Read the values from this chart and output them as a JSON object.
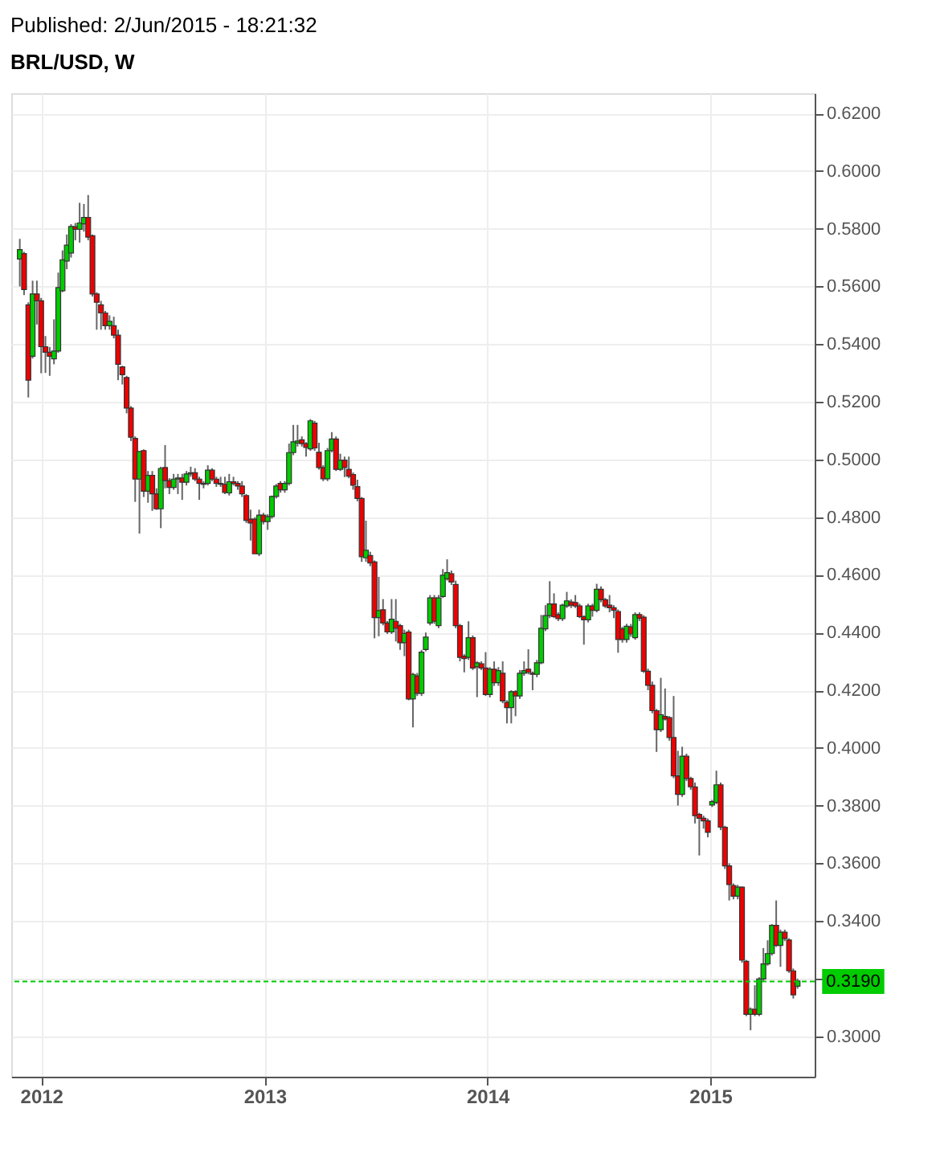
{
  "chart_data": {
    "type": "candlestick",
    "title": "BRL/USD, W",
    "subtitle": "Published: 2/Jun/2015 - 18:21:32",
    "colors": [
      "#00cc00",
      "#ee0000",
      "#ee0000",
      "#00cc00",
      "#ee0000",
      "#ee0000",
      "#ee0000",
      "#ee0000",
      "#00cc00",
      "#00cc00",
      "#00cc00",
      "#00cc00",
      "#00cc00",
      "#ee0000",
      "#00cc00",
      "#00cc00",
      "#ee0000",
      "#ee0000",
      "#ee0000",
      "#ee0000",
      "#ee0000",
      "#00cc00",
      "#ee0000",
      "#ee0000",
      "#ee0000",
      "#ee0000",
      "#ee0000",
      "#ee0000",
      "#00cc00",
      "#ee0000",
      "#00cc00",
      "#ee0000",
      "#ee0000",
      "#00cc00",
      "#ee0000",
      "#ee0000",
      "#00cc00",
      "#00cc00",
      "#ee0000",
      "#00cc00",
      "#00cc00",
      "#ee0000",
      "#ee0000",
      "#ee0000",
      "#00cc00",
      "#ee0000",
      "#ee0000",
      "#ee0000",
      "#ee0000",
      "#00cc00",
      "#ee0000",
      "#ee0000",
      "#ee0000",
      "#ee0000",
      "#ee0000",
      "#ee0000",
      "#00cc00",
      "#ee0000",
      "#00cc00",
      "#00cc00",
      "#00cc00",
      "#ee0000",
      "#00cc00",
      "#00cc00",
      "#00cc00",
      "#00cc00",
      "#ee0000",
      "#ee0000",
      "#00cc00",
      "#ee0000",
      "#ee0000",
      "#ee0000",
      "#00cc00",
      "#00cc00",
      "#ee0000",
      "#00cc00",
      "#ee0000",
      "#ee0000",
      "#ee0000",
      "#ee0000",
      "#ee0000",
      "#00cc00",
      "#ee0000",
      "#ee0000",
      "#00cc00",
      "#ee0000",
      "#ee0000",
      "#00cc00",
      "#ee0000",
      "#ee0000",
      "#00cc00",
      "#ee0000",
      "#00cc00",
      "#ee0000",
      "#00cc00",
      "#00cc00",
      "#00cc00",
      "#ee0000",
      "#00cc00",
      "#00cc00",
      "#00cc00",
      "#ee0000",
      "#ee0000",
      "#ee0000",
      "#ee0000",
      "#00cc00",
      "#ee0000",
      "#00cc00",
      "#ee0000",
      "#ee0000",
      "#00cc00",
      "#ee0000",
      "#00cc00",
      "#ee0000",
      "#ee0000",
      "#00cc00",
      "#ee0000",
      "#00cc00",
      "#00cc00",
      "#ee0000",
      "#ee0000",
      "#00cc00",
      "#00cc00",
      "#00cc00",
      "#00cc00",
      "#ee0000",
      "#ee0000",
      "#00cc00",
      "#00cc00",
      "#ee0000",
      "#ee0000",
      "#ee0000",
      "#ee0000",
      "#00cc00",
      "#ee0000",
      "#00cc00",
      "#ee0000",
      "#ee0000",
      "#ee0000",
      "#ee0000",
      "#ee0000",
      "#ee0000",
      "#00cc00",
      "#ee0000",
      "#00cc00",
      "#ee0000",
      "#ee0000",
      "#ee0000",
      "#ee0000",
      "#ee0000",
      "#00cc00",
      "#ee0000",
      "#ee0000",
      "#ee0000",
      "#ee0000",
      "#00cc00",
      "#ee0000",
      "#ee0000",
      "#ee0000",
      "#ee0000",
      "#ee0000",
      "#ee0000",
      "#00cc00",
      "#00cc00",
      "#ee0000",
      "#ee0000",
      "#ee0000",
      "#ee0000",
      "#00cc00",
      "#ee0000",
      "#ee0000",
      "#00cc00",
      "#ee0000",
      "#00cc00",
      "#00cc00",
      "#00cc00",
      "#00cc00",
      "#ee0000",
      "#00cc00",
      "#ee0000",
      "#ee0000",
      "#ee0000",
      "#00cc00"
    ],
    "grid": true,
    "xlim": [
      "2011-11-13",
      "2015-06-21"
    ],
    "xticks": [
      {
        "value": "2012-01-01",
        "label": "2012"
      },
      {
        "value": "2013-01-01",
        "label": "2013"
      },
      {
        "value": "2014-01-01",
        "label": "2014"
      },
      {
        "value": "2015-01-01",
        "label": "2015"
      }
    ],
    "ylim": [
      0.286,
      0.627
    ],
    "yticks": [
      {
        "value": 0.3,
        "label": "0.3000"
      },
      {
        "value": 0.32,
        "label": null
      },
      {
        "value": 0.34,
        "label": "0.3400"
      },
      {
        "value": 0.36,
        "label": "0.3600"
      },
      {
        "value": 0.38,
        "label": "0.3800"
      },
      {
        "value": 0.4,
        "label": "0.4000"
      },
      {
        "value": 0.42,
        "label": "0.4200"
      },
      {
        "value": 0.44,
        "label": "0.4400"
      },
      {
        "value": 0.46,
        "label": "0.4600"
      },
      {
        "value": 0.48,
        "label": "0.4800"
      },
      {
        "value": 0.5,
        "label": "0.5000"
      },
      {
        "value": 0.52,
        "label": "0.5200"
      },
      {
        "value": 0.54,
        "label": "0.5400"
      },
      {
        "value": 0.56,
        "label": "0.5600"
      },
      {
        "value": 0.58,
        "label": "0.5800"
      },
      {
        "value": 0.6,
        "label": "0.6000"
      },
      {
        "value": 0.62,
        "label": "0.6200"
      }
    ],
    "ref_lines": [
      {
        "axis": "y",
        "value": 0.319,
        "label": "0.3190",
        "color": "#00cc00",
        "line_style": "dashed"
      }
    ],
    "x": [
      "2011-11-27",
      "2011-12-04",
      "2011-12-11",
      "2011-12-18",
      "2011-12-25",
      "2012-01-01",
      "2012-01-08",
      "2012-01-15",
      "2012-01-22",
      "2012-01-29",
      "2012-02-05",
      "2012-02-12",
      "2012-02-19",
      "2012-02-26",
      "2012-03-04",
      "2012-03-11",
      "2012-03-18",
      "2012-03-25",
      "2012-04-01",
      "2012-04-08",
      "2012-04-15",
      "2012-04-22",
      "2012-04-29",
      "2012-05-06",
      "2012-05-13",
      "2012-05-20",
      "2012-05-27",
      "2012-06-03",
      "2012-06-10",
      "2012-06-17",
      "2012-06-24",
      "2012-07-01",
      "2012-07-08",
      "2012-07-15",
      "2012-07-22",
      "2012-07-29",
      "2012-08-05",
      "2012-08-12",
      "2012-08-19",
      "2012-08-26",
      "2012-09-02",
      "2012-09-09",
      "2012-09-16",
      "2012-09-23",
      "2012-09-30",
      "2012-10-07",
      "2012-10-14",
      "2012-10-21",
      "2012-10-28",
      "2012-11-04",
      "2012-11-11",
      "2012-11-18",
      "2012-11-25",
      "2012-12-02",
      "2012-12-09",
      "2012-12-16",
      "2012-12-23",
      "2012-12-30",
      "2013-01-06",
      "2013-01-13",
      "2013-01-20",
      "2013-01-27",
      "2013-02-03",
      "2013-02-10",
      "2013-02-17",
      "2013-02-24",
      "2013-03-03",
      "2013-03-10",
      "2013-03-17",
      "2013-03-24",
      "2013-03-31",
      "2013-04-07",
      "2013-04-14",
      "2013-04-21",
      "2013-04-28",
      "2013-05-05",
      "2013-05-12",
      "2013-05-19",
      "2013-05-26",
      "2013-06-02",
      "2013-06-09",
      "2013-06-16",
      "2013-06-23",
      "2013-06-30",
      "2013-07-07",
      "2013-07-14",
      "2013-07-21",
      "2013-07-28",
      "2013-08-04",
      "2013-08-11",
      "2013-08-18",
      "2013-08-25",
      "2013-09-01",
      "2013-09-08",
      "2013-09-15",
      "2013-09-22",
      "2013-09-29",
      "2013-10-06",
      "2013-10-13",
      "2013-10-20",
      "2013-10-27",
      "2013-11-03",
      "2013-11-10",
      "2013-11-17",
      "2013-11-24",
      "2013-12-01",
      "2013-12-08",
      "2013-12-15",
      "2013-12-22",
      "2013-12-29",
      "2014-01-05",
      "2014-01-12",
      "2014-01-19",
      "2014-01-26",
      "2014-02-02",
      "2014-02-09",
      "2014-02-16",
      "2014-02-23",
      "2014-03-02",
      "2014-03-09",
      "2014-03-16",
      "2014-03-23",
      "2014-03-30",
      "2014-04-06",
      "2014-04-13",
      "2014-04-20",
      "2014-04-27",
      "2014-05-04",
      "2014-05-11",
      "2014-05-18",
      "2014-05-25",
      "2014-06-01",
      "2014-06-08",
      "2014-06-15",
      "2014-06-22",
      "2014-06-29",
      "2014-07-06",
      "2014-07-13",
      "2014-07-20",
      "2014-07-27",
      "2014-08-03",
      "2014-08-10",
      "2014-08-17",
      "2014-08-24",
      "2014-08-31",
      "2014-09-07",
      "2014-09-14",
      "2014-09-21",
      "2014-09-28",
      "2014-10-05",
      "2014-10-12",
      "2014-10-19",
      "2014-10-26",
      "2014-11-02",
      "2014-11-09",
      "2014-11-16",
      "2014-11-23",
      "2014-11-30",
      "2014-12-07",
      "2014-12-14",
      "2014-12-21",
      "2014-12-28",
      "2015-01-04",
      "2015-01-11",
      "2015-01-18",
      "2015-01-25",
      "2015-02-01",
      "2015-02-08",
      "2015-02-15",
      "2015-02-22",
      "2015-03-01",
      "2015-03-08",
      "2015-03-15",
      "2015-03-22",
      "2015-03-29",
      "2015-04-05",
      "2015-04-12",
      "2015-04-19",
      "2015-04-26",
      "2015-05-03",
      "2015-05-10",
      "2015-05-17",
      "2015-05-24"
    ],
    "ohlc": [
      [
        0.5695,
        0.5765,
        0.56,
        0.5728
      ],
      [
        0.5714,
        0.572,
        0.557,
        0.5589
      ],
      [
        0.5536,
        0.5545,
        0.5215,
        0.5275
      ],
      [
        0.5358,
        0.562,
        0.535,
        0.5574
      ],
      [
        0.5574,
        0.562,
        0.5468,
        0.555
      ],
      [
        0.555,
        0.556,
        0.5299,
        0.5391
      ],
      [
        0.5391,
        0.5428,
        0.53,
        0.5372
      ],
      [
        0.5372,
        0.539,
        0.529,
        0.5358
      ],
      [
        0.5349,
        0.5486,
        0.533,
        0.5376
      ],
      [
        0.5376,
        0.5648,
        0.537,
        0.5596
      ],
      [
        0.5585,
        0.5725,
        0.558,
        0.5692
      ],
      [
        0.5688,
        0.578,
        0.566,
        0.5743
      ],
      [
        0.5716,
        0.5816,
        0.57,
        0.5808
      ],
      [
        0.5807,
        0.582,
        0.576,
        0.5798
      ],
      [
        0.5798,
        0.589,
        0.5752,
        0.582
      ],
      [
        0.5817,
        0.5886,
        0.579,
        0.5839
      ],
      [
        0.5839,
        0.5917,
        0.576,
        0.5771
      ],
      [
        0.5776,
        0.578,
        0.5565,
        0.5574
      ],
      [
        0.5574,
        0.558,
        0.545,
        0.5545
      ],
      [
        0.5536,
        0.555,
        0.545,
        0.5508
      ],
      [
        0.5508,
        0.5515,
        0.545,
        0.5464
      ],
      [
        0.5464,
        0.55,
        0.545,
        0.5479
      ],
      [
        0.5464,
        0.5495,
        0.542,
        0.5431
      ],
      [
        0.5431,
        0.545,
        0.5275,
        0.533
      ],
      [
        0.5321,
        0.5325,
        0.526,
        0.5294
      ],
      [
        0.5284,
        0.529,
        0.516,
        0.5178
      ],
      [
        0.5178,
        0.5185,
        0.5064,
        0.5077
      ],
      [
        0.5073,
        0.508,
        0.4853,
        0.4932
      ],
      [
        0.4932,
        0.5028,
        0.4743,
        0.5028
      ],
      [
        0.5031,
        0.5035,
        0.487,
        0.489
      ],
      [
        0.489,
        0.496,
        0.485,
        0.4945
      ],
      [
        0.4945,
        0.496,
        0.4822,
        0.4881
      ],
      [
        0.4881,
        0.49,
        0.4825,
        0.4829
      ],
      [
        0.4829,
        0.4975,
        0.4762,
        0.4969
      ],
      [
        0.4972,
        0.505,
        0.49,
        0.4927
      ],
      [
        0.4927,
        0.4935,
        0.488,
        0.4903
      ],
      [
        0.4903,
        0.495,
        0.4895,
        0.4932
      ],
      [
        0.4932,
        0.495,
        0.488,
        0.4936
      ],
      [
        0.4936,
        0.495,
        0.486,
        0.4921
      ],
      [
        0.4921,
        0.496,
        0.491,
        0.495
      ],
      [
        0.495,
        0.4975,
        0.494,
        0.4954
      ],
      [
        0.4954,
        0.497,
        0.4925,
        0.4932
      ],
      [
        0.4932,
        0.494,
        0.486,
        0.4917
      ],
      [
        0.4917,
        0.4925,
        0.49,
        0.4914
      ],
      [
        0.4917,
        0.498,
        0.491,
        0.4963
      ],
      [
        0.4963,
        0.497,
        0.4925,
        0.4932
      ],
      [
        0.4932,
        0.494,
        0.4905,
        0.4917
      ],
      [
        0.4917,
        0.494,
        0.4905,
        0.4914
      ],
      [
        0.4914,
        0.494,
        0.488,
        0.4886
      ],
      [
        0.4884,
        0.495,
        0.4875,
        0.4923
      ],
      [
        0.4923,
        0.494,
        0.491,
        0.4917
      ],
      [
        0.4917,
        0.4925,
        0.4895,
        0.4908
      ],
      [
        0.4908,
        0.4925,
        0.487,
        0.4881
      ],
      [
        0.4875,
        0.488,
        0.478,
        0.4789
      ],
      [
        0.4793,
        0.4826,
        0.4719,
        0.478
      ],
      [
        0.4793,
        0.48,
        0.4673,
        0.4673
      ],
      [
        0.4673,
        0.4826,
        0.4665,
        0.4807
      ],
      [
        0.4807,
        0.4815,
        0.4775,
        0.4785
      ],
      [
        0.4785,
        0.481,
        0.4756,
        0.4802
      ],
      [
        0.4802,
        0.4875,
        0.4795,
        0.4872
      ],
      [
        0.4872,
        0.4915,
        0.4865,
        0.4908
      ],
      [
        0.4917,
        0.4925,
        0.4885,
        0.4895
      ],
      [
        0.4895,
        0.4925,
        0.4885,
        0.4917
      ],
      [
        0.4917,
        0.5055,
        0.491,
        0.5024
      ],
      [
        0.5024,
        0.512,
        0.5015,
        0.5061
      ],
      [
        0.5057,
        0.512,
        0.5045,
        0.5064
      ],
      [
        0.5068,
        0.508,
        0.5045,
        0.5055
      ],
      [
        0.5055,
        0.506,
        0.501,
        0.5042
      ],
      [
        0.5037,
        0.514,
        0.503,
        0.5134
      ],
      [
        0.5126,
        0.5134,
        0.503,
        0.504
      ],
      [
        0.5025,
        0.5058,
        0.4965,
        0.4972
      ],
      [
        0.4972,
        0.498,
        0.4925,
        0.4933
      ],
      [
        0.4933,
        0.504,
        0.4925,
        0.5031
      ],
      [
        0.5031,
        0.5095,
        0.5025,
        0.5071
      ],
      [
        0.5071,
        0.508,
        0.496,
        0.4966
      ],
      [
        0.4966,
        0.502,
        0.496,
        0.4998
      ],
      [
        0.4998,
        0.501,
        0.4939,
        0.4972
      ],
      [
        0.4966,
        0.501,
        0.4935,
        0.4942
      ],
      [
        0.4948,
        0.4955,
        0.4895,
        0.4911
      ],
      [
        0.4906,
        0.493,
        0.4855,
        0.4865
      ],
      [
        0.4865,
        0.487,
        0.4645,
        0.4663
      ],
      [
        0.4659,
        0.4788,
        0.4645,
        0.4685
      ],
      [
        0.4667,
        0.468,
        0.463,
        0.4641
      ],
      [
        0.4645,
        0.465,
        0.438,
        0.4452
      ],
      [
        0.4452,
        0.4593,
        0.4387,
        0.4476
      ],
      [
        0.4479,
        0.4516,
        0.4425,
        0.4433
      ],
      [
        0.4433,
        0.444,
        0.4395,
        0.4402
      ],
      [
        0.4402,
        0.4516,
        0.4395,
        0.4446
      ],
      [
        0.4439,
        0.4516,
        0.4369,
        0.4415
      ],
      [
        0.4424,
        0.443,
        0.434,
        0.4365
      ],
      [
        0.4365,
        0.441,
        0.4318,
        0.4397
      ],
      [
        0.4402,
        0.441,
        0.4165,
        0.417
      ],
      [
        0.417,
        0.426,
        0.4071,
        0.4255
      ],
      [
        0.425,
        0.426,
        0.418,
        0.4189
      ],
      [
        0.4189,
        0.434,
        0.418,
        0.4332
      ],
      [
        0.4341,
        0.44,
        0.4335,
        0.4384
      ],
      [
        0.4433,
        0.453,
        0.4425,
        0.452
      ],
      [
        0.452,
        0.453,
        0.443,
        0.4439
      ],
      [
        0.4424,
        0.453,
        0.4415,
        0.452
      ],
      [
        0.4525,
        0.462,
        0.452,
        0.4599
      ],
      [
        0.4586,
        0.4654,
        0.458,
        0.4608
      ],
      [
        0.4604,
        0.4615,
        0.4565,
        0.4575
      ],
      [
        0.4567,
        0.458,
        0.4415,
        0.4424
      ],
      [
        0.4424,
        0.443,
        0.43,
        0.4314
      ],
      [
        0.4318,
        0.4325,
        0.4262,
        0.431
      ],
      [
        0.4314,
        0.4439,
        0.4305,
        0.4382
      ],
      [
        0.4382,
        0.439,
        0.427,
        0.4277
      ],
      [
        0.4281,
        0.43,
        0.4176,
        0.4295
      ],
      [
        0.4292,
        0.43,
        0.427,
        0.4277
      ],
      [
        0.4277,
        0.4332,
        0.418,
        0.4185
      ],
      [
        0.4185,
        0.428,
        0.4175,
        0.4273
      ],
      [
        0.4273,
        0.43,
        0.4215,
        0.4226
      ],
      [
        0.4226,
        0.428,
        0.4215,
        0.4268
      ],
      [
        0.4259,
        0.43,
        0.4155,
        0.4163
      ],
      [
        0.4158,
        0.4165,
        0.4085,
        0.414
      ],
      [
        0.414,
        0.42,
        0.4085,
        0.4195
      ],
      [
        0.4195,
        0.42,
        0.411,
        0.418
      ],
      [
        0.418,
        0.427,
        0.417,
        0.4259
      ],
      [
        0.4259,
        0.43,
        0.425,
        0.4268
      ],
      [
        0.4273,
        0.4342,
        0.4255,
        0.4262
      ],
      [
        0.4259,
        0.4265,
        0.42,
        0.4255
      ],
      [
        0.4255,
        0.4305,
        0.4245,
        0.4295
      ],
      [
        0.4295,
        0.4461,
        0.429,
        0.4415
      ],
      [
        0.4413,
        0.4495,
        0.4405,
        0.4459
      ],
      [
        0.4459,
        0.4578,
        0.445,
        0.4499
      ],
      [
        0.4499,
        0.4536,
        0.445,
        0.4455
      ],
      [
        0.4462,
        0.447,
        0.444,
        0.4448
      ],
      [
        0.4448,
        0.45,
        0.444,
        0.4495
      ],
      [
        0.4492,
        0.4541,
        0.4485,
        0.451
      ],
      [
        0.4506,
        0.4515,
        0.4485,
        0.4495
      ],
      [
        0.4504,
        0.453,
        0.4485,
        0.4492
      ],
      [
        0.4492,
        0.45,
        0.445,
        0.4455
      ],
      [
        0.4455,
        0.446,
        0.4358,
        0.4444
      ],
      [
        0.4444,
        0.45,
        0.4435,
        0.4492
      ],
      [
        0.4492,
        0.45,
        0.4455,
        0.4477
      ],
      [
        0.4477,
        0.4569,
        0.447,
        0.455
      ],
      [
        0.455,
        0.456,
        0.4505,
        0.4514
      ],
      [
        0.4514,
        0.452,
        0.4485,
        0.4492
      ],
      [
        0.4495,
        0.453,
        0.447,
        0.4486
      ],
      [
        0.4486,
        0.4495,
        0.445,
        0.4477
      ],
      [
        0.4473,
        0.448,
        0.433,
        0.4376
      ],
      [
        0.4413,
        0.442,
        0.4365,
        0.4376
      ],
      [
        0.4376,
        0.443,
        0.4365,
        0.4422
      ],
      [
        0.442,
        0.443,
        0.4385,
        0.4395
      ],
      [
        0.4382,
        0.447,
        0.4375,
        0.4462
      ],
      [
        0.4462,
        0.447,
        0.444,
        0.445
      ],
      [
        0.4453,
        0.446,
        0.426,
        0.4266
      ],
      [
        0.4266,
        0.4275,
        0.42,
        0.4217
      ],
      [
        0.4217,
        0.423,
        0.412,
        0.4129
      ],
      [
        0.4129,
        0.4135,
        0.3986,
        0.4063
      ],
      [
        0.4063,
        0.4243,
        0.4055,
        0.4115
      ],
      [
        0.4109,
        0.4206,
        0.4095,
        0.41
      ],
      [
        0.4105,
        0.411,
        0.4025,
        0.4036
      ],
      [
        0.4036,
        0.418,
        0.3895,
        0.3903
      ],
      [
        0.3903,
        0.399,
        0.38,
        0.3839
      ],
      [
        0.3839,
        0.4004,
        0.383,
        0.3971
      ],
      [
        0.3971,
        0.398,
        0.3885,
        0.3894
      ],
      [
        0.3894,
        0.39,
        0.3855,
        0.3865
      ],
      [
        0.3865,
        0.388,
        0.3738,
        0.3765
      ],
      [
        0.3769,
        0.3775,
        0.3627,
        0.3756
      ],
      [
        0.3756,
        0.3765,
        0.372,
        0.3747
      ],
      [
        0.3747,
        0.3755,
        0.369,
        0.3707
      ],
      [
        0.3802,
        0.382,
        0.3795,
        0.3814
      ],
      [
        0.3811,
        0.3921,
        0.3805,
        0.3872
      ],
      [
        0.3872,
        0.388,
        0.3715,
        0.3725
      ],
      [
        0.3725,
        0.373,
        0.358,
        0.3591
      ],
      [
        0.3591,
        0.36,
        0.3471,
        0.3526
      ],
      [
        0.3523,
        0.353,
        0.3475,
        0.3486
      ],
      [
        0.3486,
        0.3525,
        0.3475,
        0.3517
      ],
      [
        0.3517,
        0.352,
        0.3255,
        0.3264
      ],
      [
        0.326,
        0.3265,
        0.307,
        0.3076
      ],
      [
        0.3076,
        0.31,
        0.3021,
        0.3094
      ],
      [
        0.3094,
        0.3177,
        0.307,
        0.3076
      ],
      [
        0.3076,
        0.3205,
        0.307,
        0.3199
      ],
      [
        0.3199,
        0.3306,
        0.319,
        0.3251
      ],
      [
        0.3251,
        0.3333,
        0.3245,
        0.3287
      ],
      [
        0.3287,
        0.3389,
        0.328,
        0.3385
      ],
      [
        0.3385,
        0.3471,
        0.331,
        0.3315
      ],
      [
        0.3315,
        0.337,
        0.3241,
        0.3361
      ],
      [
        0.3361,
        0.337,
        0.333,
        0.3339
      ],
      [
        0.3334,
        0.334,
        0.322,
        0.3227
      ],
      [
        0.3227,
        0.3235,
        0.3131,
        0.3144
      ],
      [
        0.3174,
        0.32,
        0.3165,
        0.3192
      ]
    ]
  }
}
